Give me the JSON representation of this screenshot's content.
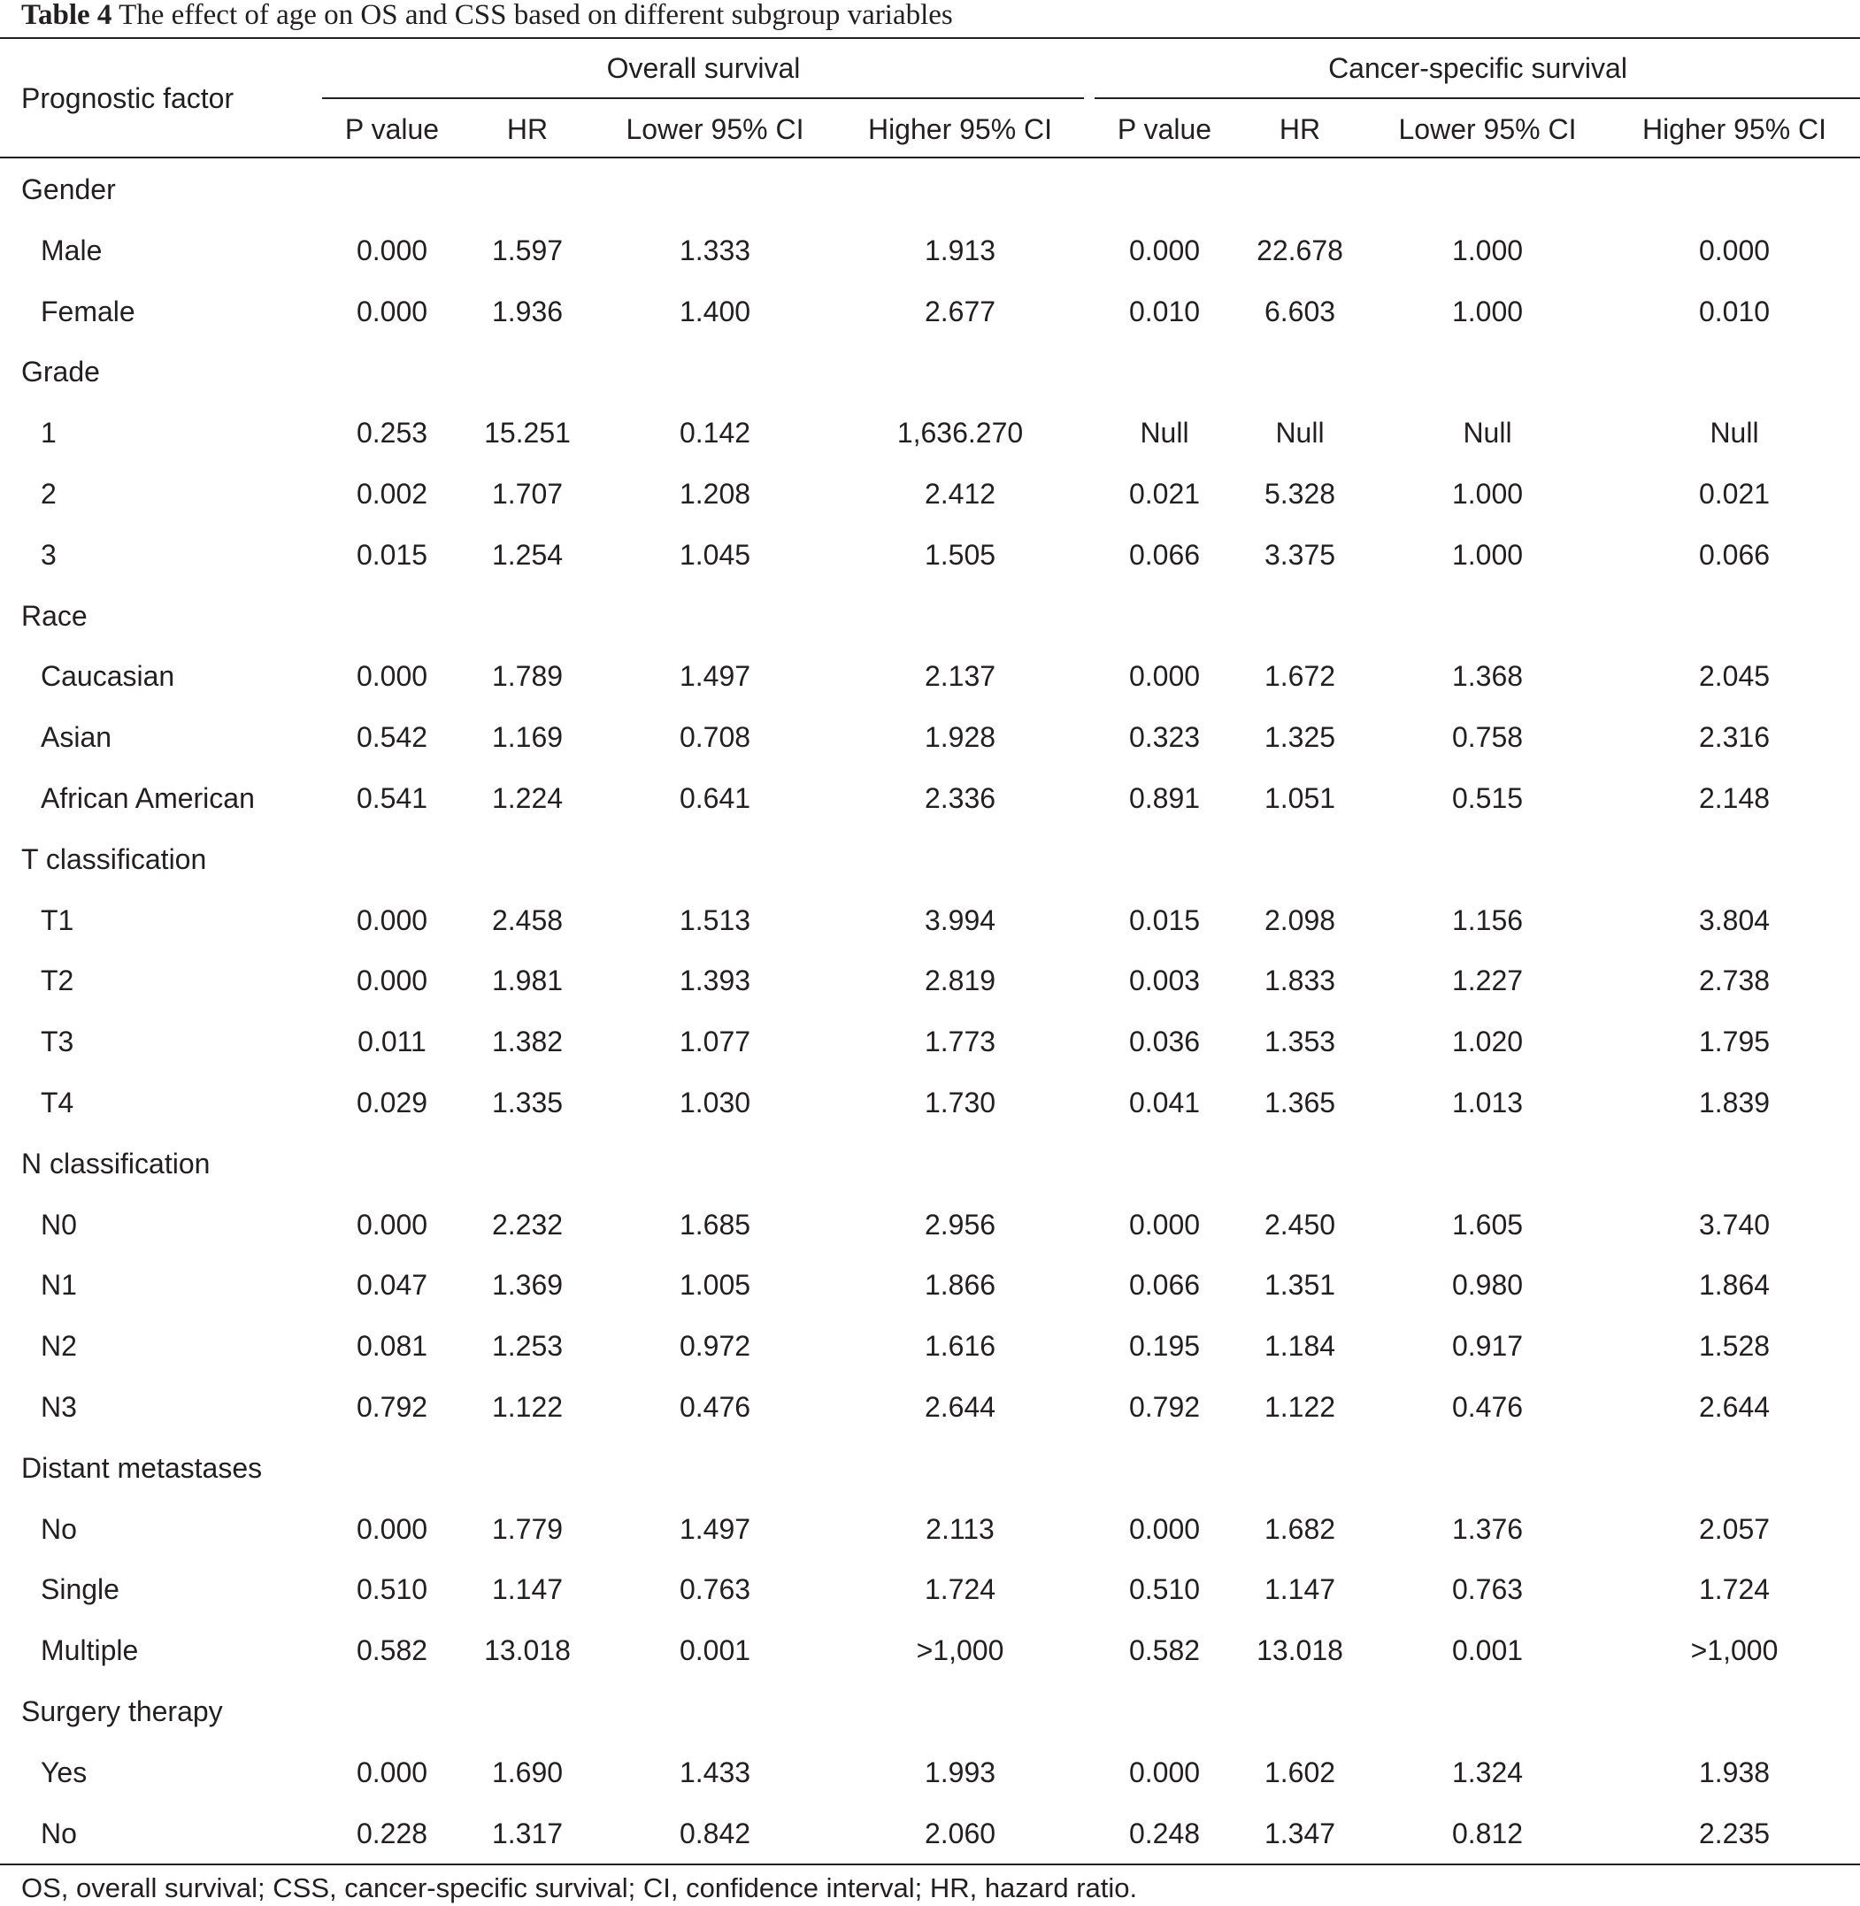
{
  "caption": {
    "label": "Table 4",
    "text": "The effect of age on OS and CSS based on different subgroup variables"
  },
  "header": {
    "row_label": "Prognostic factor",
    "groups": [
      "Overall survival",
      "Cancer-specific survival"
    ],
    "columns": [
      "P value",
      "HR",
      "Lower 95% CI",
      "Higher 95% CI",
      "P value",
      "HR",
      "Lower 95% CI",
      "Higher 95% CI"
    ]
  },
  "rows": [
    {
      "kind": "group",
      "label": "Gender"
    },
    {
      "kind": "item",
      "label": "Male",
      "values": [
        "0.000",
        "1.597",
        "1.333",
        "1.913",
        "0.000",
        "22.678",
        "1.000",
        "0.000"
      ]
    },
    {
      "kind": "item",
      "label": "Female",
      "values": [
        "0.000",
        "1.936",
        "1.400",
        "2.677",
        "0.010",
        "6.603",
        "1.000",
        "0.010"
      ]
    },
    {
      "kind": "group",
      "label": "Grade"
    },
    {
      "kind": "item",
      "label": "1",
      "values": [
        "0.253",
        "15.251",
        "0.142",
        "1,636.270",
        "Null",
        "Null",
        "Null",
        "Null"
      ]
    },
    {
      "kind": "item",
      "label": "2",
      "values": [
        "0.002",
        "1.707",
        "1.208",
        "2.412",
        "0.021",
        "5.328",
        "1.000",
        "0.021"
      ]
    },
    {
      "kind": "item",
      "label": "3",
      "values": [
        "0.015",
        "1.254",
        "1.045",
        "1.505",
        "0.066",
        "3.375",
        "1.000",
        "0.066"
      ]
    },
    {
      "kind": "group",
      "label": "Race"
    },
    {
      "kind": "item",
      "label": "Caucasian",
      "values": [
        "0.000",
        "1.789",
        "1.497",
        "2.137",
        "0.000",
        "1.672",
        "1.368",
        "2.045"
      ]
    },
    {
      "kind": "item",
      "label": "Asian",
      "values": [
        "0.542",
        "1.169",
        "0.708",
        "1.928",
        "0.323",
        "1.325",
        "0.758",
        "2.316"
      ]
    },
    {
      "kind": "item",
      "label": "African American",
      "values": [
        "0.541",
        "1.224",
        "0.641",
        "2.336",
        "0.891",
        "1.051",
        "0.515",
        "2.148"
      ]
    },
    {
      "kind": "group",
      "label": "T classification"
    },
    {
      "kind": "item",
      "label": "T1",
      "values": [
        "0.000",
        "2.458",
        "1.513",
        "3.994",
        "0.015",
        "2.098",
        "1.156",
        "3.804"
      ]
    },
    {
      "kind": "item",
      "label": "T2",
      "values": [
        "0.000",
        "1.981",
        "1.393",
        "2.819",
        "0.003",
        "1.833",
        "1.227",
        "2.738"
      ]
    },
    {
      "kind": "item",
      "label": "T3",
      "values": [
        "0.011",
        "1.382",
        "1.077",
        "1.773",
        "0.036",
        "1.353",
        "1.020",
        "1.795"
      ]
    },
    {
      "kind": "item",
      "label": "T4",
      "values": [
        "0.029",
        "1.335",
        "1.030",
        "1.730",
        "0.041",
        "1.365",
        "1.013",
        "1.839"
      ]
    },
    {
      "kind": "group",
      "label": "N classification"
    },
    {
      "kind": "item",
      "label": "N0",
      "values": [
        "0.000",
        "2.232",
        "1.685",
        "2.956",
        "0.000",
        "2.450",
        "1.605",
        "3.740"
      ]
    },
    {
      "kind": "item",
      "label": "N1",
      "values": [
        "0.047",
        "1.369",
        "1.005",
        "1.866",
        "0.066",
        "1.351",
        "0.980",
        "1.864"
      ]
    },
    {
      "kind": "item",
      "label": "N2",
      "values": [
        "0.081",
        "1.253",
        "0.972",
        "1.616",
        "0.195",
        "1.184",
        "0.917",
        "1.528"
      ]
    },
    {
      "kind": "item",
      "label": "N3",
      "values": [
        "0.792",
        "1.122",
        "0.476",
        "2.644",
        "0.792",
        "1.122",
        "0.476",
        "2.644"
      ]
    },
    {
      "kind": "group",
      "label": "Distant metastases"
    },
    {
      "kind": "item",
      "label": "No",
      "values": [
        "0.000",
        "1.779",
        "1.497",
        "2.113",
        "0.000",
        "1.682",
        "1.376",
        "2.057"
      ]
    },
    {
      "kind": "item",
      "label": "Single",
      "values": [
        "0.510",
        "1.147",
        "0.763",
        "1.724",
        "0.510",
        "1.147",
        "0.763",
        "1.724"
      ]
    },
    {
      "kind": "item",
      "label": "Multiple",
      "values": [
        "0.582",
        "13.018",
        "0.001",
        ">1,000",
        "0.582",
        "13.018",
        "0.001",
        ">1,000"
      ]
    },
    {
      "kind": "group",
      "label": "Surgery therapy"
    },
    {
      "kind": "item",
      "label": "Yes",
      "values": [
        "0.000",
        "1.690",
        "1.433",
        "1.993",
        "0.000",
        "1.602",
        "1.324",
        "1.938"
      ]
    },
    {
      "kind": "item",
      "label": "No",
      "values": [
        "0.228",
        "1.317",
        "0.842",
        "2.060",
        "0.248",
        "1.347",
        "0.812",
        "2.235"
      ]
    }
  ],
  "footnote": "OS, overall survival; CSS, cancer-specific survival; CI, confidence interval; HR, hazard ratio."
}
